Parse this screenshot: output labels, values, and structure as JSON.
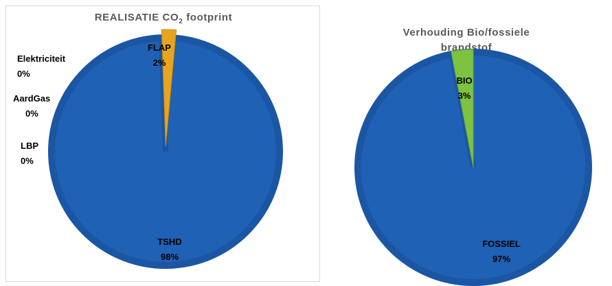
{
  "chart_data": [
    {
      "type": "pie",
      "title_main": "REALISATIE CO",
      "title_sub": "2",
      "title_rest": " footprint",
      "slices": [
        {
          "name": "Elektriciteit",
          "value": 0,
          "label_pct": "0%",
          "color": "#1f61b4"
        },
        {
          "name": "AardGas",
          "value": 0,
          "label_pct": "0%",
          "color": "#1f61b4"
        },
        {
          "name": "LBP",
          "value": 0,
          "label_pct": "0%",
          "color": "#1f61b4"
        },
        {
          "name": "TSHD",
          "value": 98,
          "label_pct": "98%",
          "color": "#1f61b4"
        },
        {
          "name": "FLAP",
          "value": 2,
          "label_pct": "2%",
          "color": "#e8a41f"
        }
      ]
    },
    {
      "type": "pie",
      "title_line1": "Verhouding Bio/fossiele",
      "title_line2": "brandstof",
      "slices": [
        {
          "name": "FOSSIEL",
          "value": 97,
          "label_pct": "97%",
          "color": "#1f61b4"
        },
        {
          "name": "BIO",
          "value": 3,
          "label_pct": "3%",
          "color": "#7ec242"
        }
      ]
    }
  ],
  "colors": {
    "edge": "#1a56a3",
    "blue": "#1f61b4",
    "orange": "#e8a41f",
    "green": "#7ec242"
  }
}
